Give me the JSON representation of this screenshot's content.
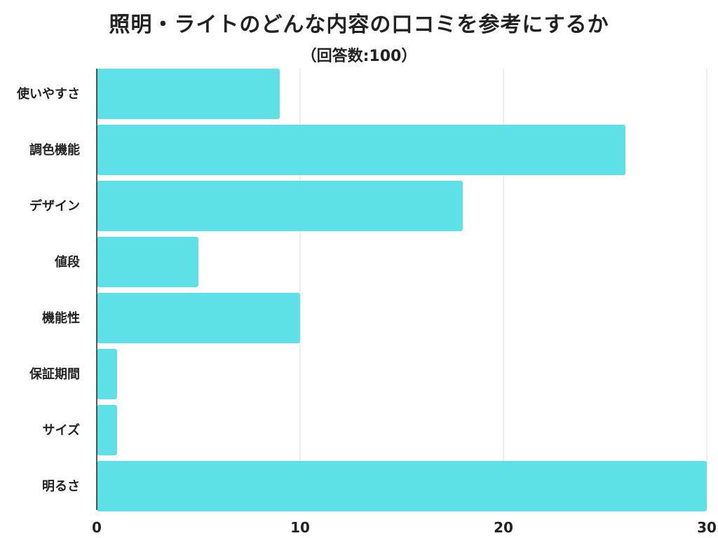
{
  "chart_data": {
    "type": "bar",
    "orientation": "horizontal",
    "title": "照明・ライトのどんな内容の口コミを参考にするか",
    "subtitle": "（回答数:100）",
    "categories": [
      "使いやすさ",
      "調色機能",
      "デザイン",
      "値段",
      "機能性",
      "保証期間",
      "サイズ",
      "明るさ"
    ],
    "values": [
      9,
      26,
      18,
      5,
      10,
      1,
      1,
      30
    ],
    "xlim": [
      0,
      30
    ],
    "xticks": [
      0,
      10,
      20,
      30
    ],
    "xlabel": "",
    "ylabel": "",
    "grid": true,
    "bar_color": "#5de1e6",
    "grid_color": "#dddddd",
    "axis_color": "#222222"
  }
}
